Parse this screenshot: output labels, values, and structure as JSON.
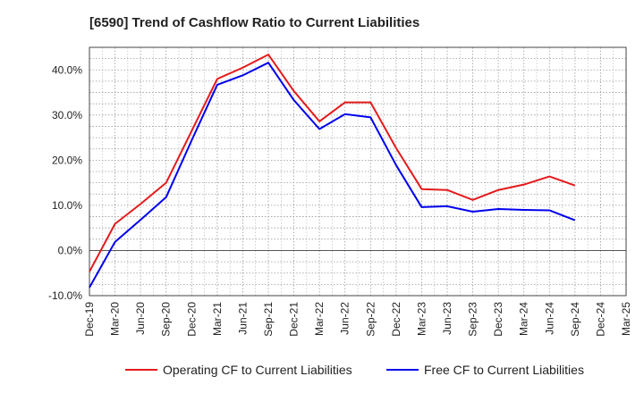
{
  "chart_data": {
    "type": "line",
    "title": "[6590]  Trend of Cashflow Ratio to Current Liabilities",
    "x": [
      "Dec-19",
      "Mar-20",
      "Jun-20",
      "Sep-20",
      "Dec-20",
      "Mar-21",
      "Jun-21",
      "Sep-21",
      "Dec-21",
      "Mar-22",
      "Jun-22",
      "Sep-22",
      "Dec-22",
      "Mar-23",
      "Jun-23",
      "Sep-23",
      "Dec-23",
      "Mar-24",
      "Jun-24",
      "Sep-24",
      "Dec-24",
      "Mar-25"
    ],
    "ylim": [
      -10,
      45
    ],
    "yticks": [
      -10,
      0,
      10,
      20,
      30,
      40
    ],
    "ytick_labels": [
      "-10.0%",
      "0.0%",
      "10.0%",
      "20.0%",
      "30.0%",
      "40.0%"
    ],
    "grid": true,
    "legend_position": "bottom",
    "series": [
      {
        "name": "Operating CF to Current Liabilities",
        "color": "#e41a1c",
        "values": [
          -4.7,
          5.9,
          10.3,
          15.0,
          26.5,
          38.0,
          40.5,
          43.4,
          35.3,
          28.6,
          32.8,
          32.8,
          22.7,
          13.6,
          13.4,
          11.2,
          13.4,
          14.6,
          16.4,
          14.4,
          null,
          null
        ]
      },
      {
        "name": "Free CF to Current Liabilities",
        "color": "#0000ee",
        "values": [
          -8.2,
          1.9,
          6.8,
          11.8,
          24.4,
          36.7,
          38.8,
          41.6,
          33.3,
          26.9,
          30.2,
          29.5,
          18.9,
          9.6,
          9.8,
          8.6,
          9.2,
          9.0,
          8.9,
          6.7,
          null,
          null
        ]
      }
    ]
  }
}
